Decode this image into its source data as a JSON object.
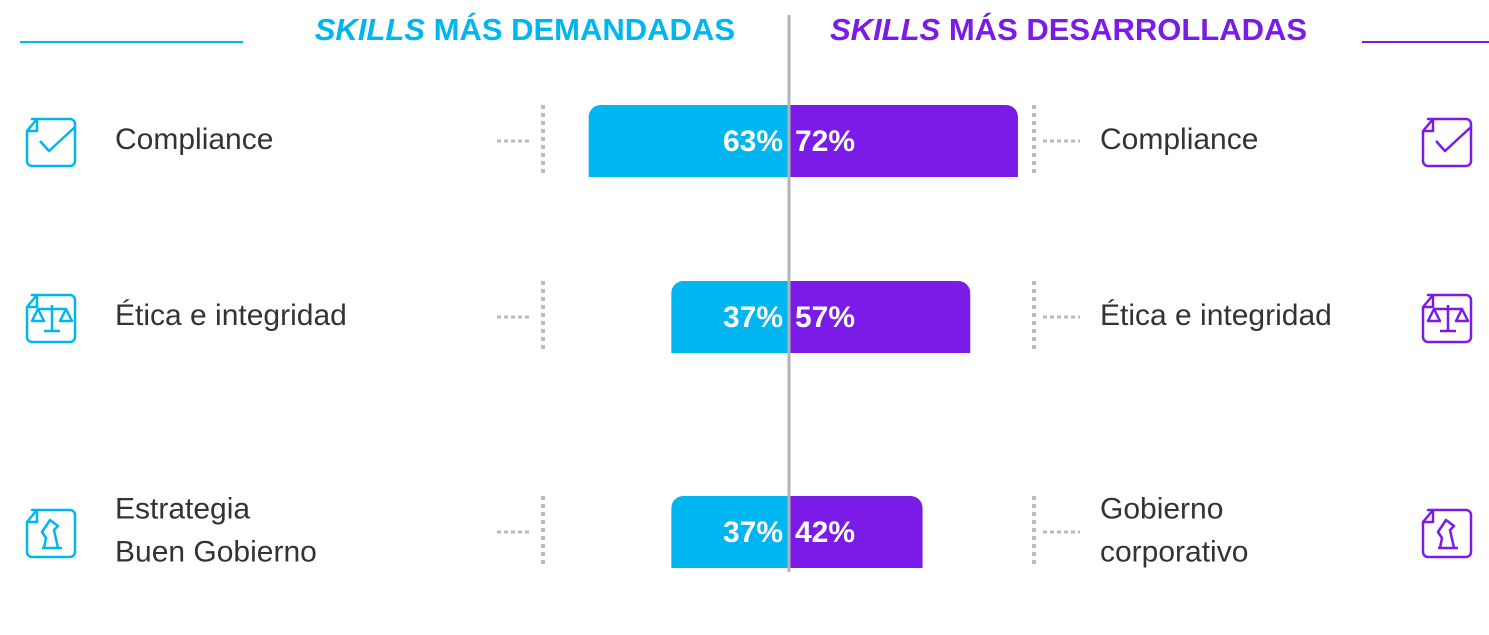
{
  "chart_data": {
    "type": "butterfly",
    "series": [
      {
        "name_emphasis": "SKILLS",
        "name": "MÁS DEMANDADAS",
        "color": "#00b6f1",
        "categories": [
          [
            "Compliance"
          ],
          [
            "Ética e integridad"
          ],
          [
            "Estrategia",
            "Buen Gobierno"
          ]
        ],
        "values": [
          63,
          37,
          37
        ],
        "value_labels": [
          "63%",
          "37%",
          "37%"
        ]
      },
      {
        "name_emphasis": "SKILLS",
        "name": "MÁS DESARROLLADAS",
        "color": "#7a1be8",
        "categories": [
          [
            "Compliance"
          ],
          [
            "Ética e integridad"
          ],
          [
            "Gobierno",
            "corporativo"
          ]
        ],
        "values": [
          72,
          57,
          42
        ],
        "value_labels": [
          "72%",
          "57%",
          "42%"
        ]
      }
    ]
  }
}
